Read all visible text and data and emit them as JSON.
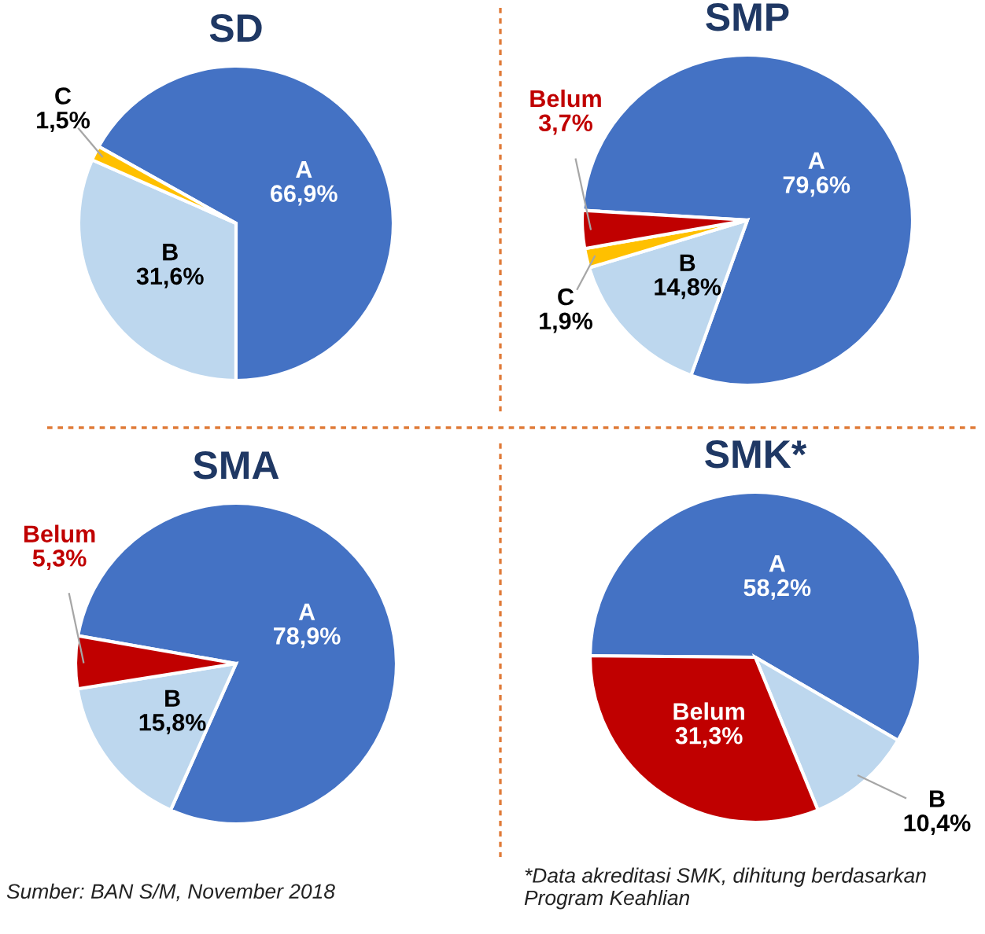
{
  "chart_data": [
    {
      "type": "pie",
      "title": "SD",
      "categories": [
        "A",
        "B",
        "C"
      ],
      "values": [
        66.9,
        31.6,
        1.5
      ],
      "value_labels": [
        "66,9%",
        "31,6%",
        "1,5%"
      ],
      "colors": [
        "#4472c4",
        "#bdd7ee",
        "#ffc000"
      ]
    },
    {
      "type": "pie",
      "title": "SMP",
      "categories": [
        "A",
        "B",
        "C",
        "Belum"
      ],
      "values": [
        79.6,
        14.8,
        1.9,
        3.7
      ],
      "value_labels": [
        "79,6%",
        "14,8%",
        "1,9%",
        "3,7%"
      ],
      "colors": [
        "#4472c4",
        "#bdd7ee",
        "#ffc000",
        "#c00000"
      ]
    },
    {
      "type": "pie",
      "title": "SMA",
      "categories": [
        "A",
        "B",
        "Belum"
      ],
      "values": [
        78.9,
        15.8,
        5.3
      ],
      "value_labels": [
        "78,9%",
        "15,8%",
        "5,3%"
      ],
      "colors": [
        "#4472c4",
        "#bdd7ee",
        "#c00000"
      ],
      "annotations": [
        "Sumber: BAN S/M, November 2018"
      ]
    },
    {
      "type": "pie",
      "title": "SMK*",
      "categories": [
        "A",
        "B",
        "Belum"
      ],
      "values": [
        58.2,
        10.4,
        31.3
      ],
      "value_labels": [
        "58,2%",
        "10,4%",
        "31,3%"
      ],
      "colors": [
        "#4472c4",
        "#bdd7ee",
        "#c00000"
      ],
      "annotations": [
        "*Data akreditasi SMK, dihitung berdasarkan\nProgram Keahlian"
      ]
    }
  ]
}
